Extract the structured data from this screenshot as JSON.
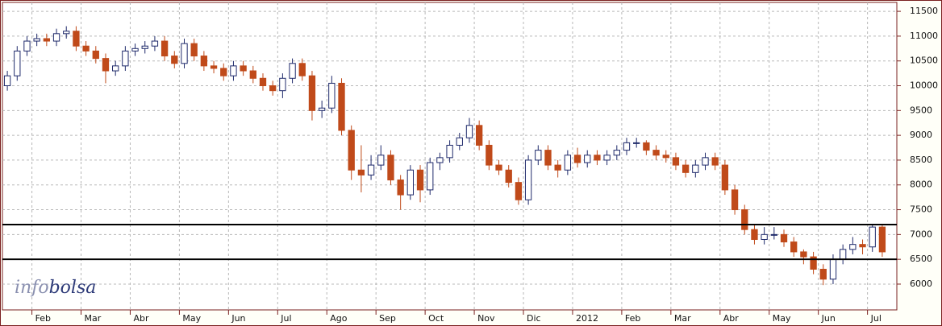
{
  "chart_data": {
    "type": "candlestick",
    "watermark": {
      "prefix": "info",
      "suffix": "bolsa"
    },
    "categories": [
      null,
      null,
      null,
      "Feb",
      null,
      null,
      null,
      null,
      "Mar",
      null,
      null,
      null,
      null,
      "Abr",
      null,
      null,
      null,
      null,
      "May",
      null,
      null,
      null,
      null,
      "Jun",
      null,
      null,
      null,
      null,
      "Jul",
      null,
      null,
      null,
      null,
      "Ago",
      null,
      null,
      null,
      null,
      "Sep",
      null,
      null,
      null,
      null,
      "Oct",
      null,
      null,
      null,
      null,
      "Nov",
      null,
      null,
      null,
      null,
      "Dic",
      null,
      null,
      null,
      null,
      "2012",
      null,
      null,
      null,
      null,
      "Feb",
      null,
      null,
      null,
      null,
      "Mar",
      null,
      null,
      null,
      null,
      "Abr",
      null,
      null,
      null,
      null,
      "May",
      null,
      null,
      null,
      null,
      "Jun",
      null,
      null,
      null,
      null,
      "Jul",
      null
    ],
    "open": [
      10000,
      10200,
      10700,
      10900,
      10950,
      10900,
      11050,
      11100,
      10800,
      10700,
      10550,
      10300,
      10400,
      10700,
      10750,
      10800,
      10900,
      10600,
      10450,
      10850,
      10600,
      10400,
      10350,
      10200,
      10400,
      10300,
      10150,
      10000,
      9900,
      10150,
      10450,
      10200,
      9500,
      9550,
      10050,
      9100,
      8300,
      8200,
      8400,
      8600,
      8100,
      7800,
      8300,
      7900,
      8450,
      8550,
      8800,
      8950,
      9200,
      8800,
      8400,
      8300,
      8050,
      7700,
      8500,
      8700,
      8400,
      8300,
      8600,
      8450,
      8600,
      8500,
      8600,
      8700,
      8850,
      8850,
      8700,
      8600,
      8550,
      8400,
      8250,
      8400,
      8550,
      8400,
      7900,
      7500,
      7100,
      6900,
      7000,
      7000,
      6850,
      6650,
      6550,
      6300,
      6100,
      6500,
      6700,
      6800,
      6750,
      7150
    ],
    "high": [
      10300,
      10800,
      11000,
      11050,
      11050,
      11150,
      11200,
      11200,
      10900,
      10800,
      10650,
      10500,
      10800,
      10850,
      10900,
      11000,
      11000,
      10700,
      10950,
      10950,
      10700,
      10500,
      10450,
      10500,
      10500,
      10400,
      10250,
      10100,
      10250,
      10550,
      10550,
      10300,
      9700,
      10200,
      10150,
      9200,
      8800,
      8600,
      8800,
      8700,
      8200,
      8400,
      8400,
      8550,
      8650,
      8900,
      9050,
      9350,
      9300,
      8900,
      8500,
      8400,
      8150,
      8600,
      8800,
      8800,
      8500,
      8700,
      8750,
      8700,
      8700,
      8700,
      8800,
      8950,
      8950,
      8900,
      8800,
      8700,
      8650,
      8500,
      8500,
      8650,
      8650,
      8500,
      8000,
      7600,
      7200,
      7150,
      7150,
      7100,
      6950,
      6700,
      6650,
      6400,
      6600,
      6800,
      6950,
      6900,
      7200,
      7200
    ],
    "low": [
      9900,
      10100,
      10600,
      10800,
      10800,
      10800,
      10950,
      10700,
      10600,
      10450,
      10050,
      10200,
      10300,
      10600,
      10650,
      10700,
      10500,
      10350,
      10350,
      10500,
      10300,
      10250,
      10100,
      10100,
      10200,
      10050,
      9900,
      9800,
      9750,
      10050,
      10100,
      9300,
      9350,
      9450,
      9000,
      8100,
      7850,
      8100,
      8300,
      8000,
      7500,
      7700,
      7650,
      7800,
      8300,
      8450,
      8700,
      8850,
      8700,
      8300,
      8200,
      7950,
      7600,
      7600,
      8400,
      8300,
      8150,
      8200,
      8350,
      8350,
      8400,
      8400,
      8500,
      8600,
      8750,
      8600,
      8500,
      8450,
      8300,
      8150,
      8150,
      8300,
      8300,
      7800,
      7400,
      7000,
      6800,
      6800,
      6900,
      6750,
      6550,
      6400,
      6200,
      5980,
      6000,
      6400,
      6600,
      6600,
      6650,
      6550
    ],
    "close": [
      10200,
      10700,
      10900,
      10950,
      10900,
      11050,
      11100,
      10800,
      10700,
      10550,
      10300,
      10400,
      10700,
      10750,
      10800,
      10900,
      10600,
      10450,
      10850,
      10600,
      10400,
      10350,
      10200,
      10400,
      10300,
      10150,
      10000,
      9900,
      10150,
      10450,
      10200,
      9500,
      9550,
      10050,
      9100,
      8300,
      8200,
      8400,
      8600,
      8100,
      7800,
      8300,
      7900,
      8450,
      8550,
      8800,
      8950,
      9200,
      8800,
      8400,
      8300,
      8050,
      7700,
      8500,
      8700,
      8400,
      8300,
      8600,
      8450,
      8600,
      8500,
      8600,
      8700,
      8850,
      8850,
      8700,
      8600,
      8550,
      8400,
      8250,
      8400,
      8550,
      8400,
      7900,
      7500,
      7100,
      6900,
      7000,
      7000,
      6850,
      6650,
      6550,
      6300,
      6100,
      6500,
      6700,
      6800,
      6750,
      7150,
      6650
    ],
    "up_color": "#1f2a6b",
    "down_color": "#c04a1a",
    "hlines": [
      7200,
      6500
    ],
    "ylim": [
      5480,
      11680
    ],
    "yticks": [
      6000,
      6500,
      7000,
      7500,
      8000,
      8500,
      9000,
      9500,
      10000,
      10500,
      11000,
      11500
    ],
    "grid": true
  }
}
